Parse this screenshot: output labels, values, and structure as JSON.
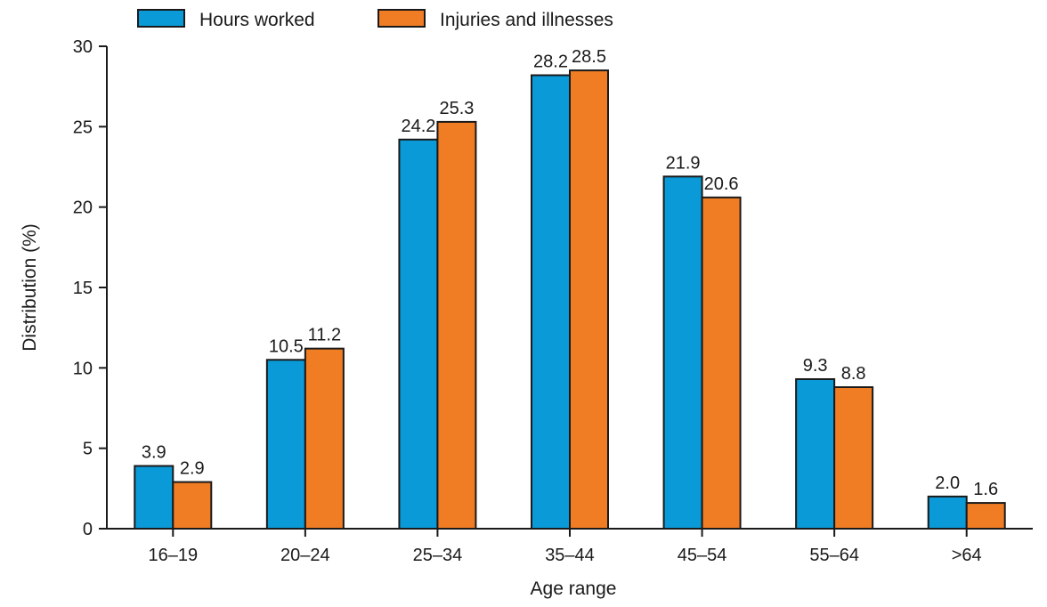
{
  "chart_data": {
    "type": "bar",
    "title": "",
    "xlabel": "Age range",
    "ylabel": "Distribution (%)",
    "categories": [
      "16–19",
      "20–24",
      "25–34",
      "35–44",
      "45–54",
      "55–64",
      ">64"
    ],
    "series": [
      {
        "name": "Hours worked",
        "color": "#0a9ad8",
        "values": [
          3.9,
          10.5,
          24.2,
          28.2,
          21.9,
          9.3,
          2.0
        ],
        "labels": [
          "3.9",
          "10.5",
          "24.2",
          "28.2",
          "21.9",
          "9.3",
          "2.0"
        ]
      },
      {
        "name": "Injuries and illnesses",
        "color": "#f07d23",
        "values": [
          2.9,
          11.2,
          25.3,
          28.5,
          20.6,
          8.8,
          1.6
        ],
        "labels": [
          "2.9",
          "11.2",
          "25.3",
          "28.5",
          "20.6",
          "8.8",
          "1.6"
        ]
      }
    ],
    "ylim": [
      0,
      30
    ],
    "yticks": [
      0,
      5,
      10,
      15,
      20,
      25,
      30
    ],
    "grid": false,
    "legend": "top-left"
  }
}
